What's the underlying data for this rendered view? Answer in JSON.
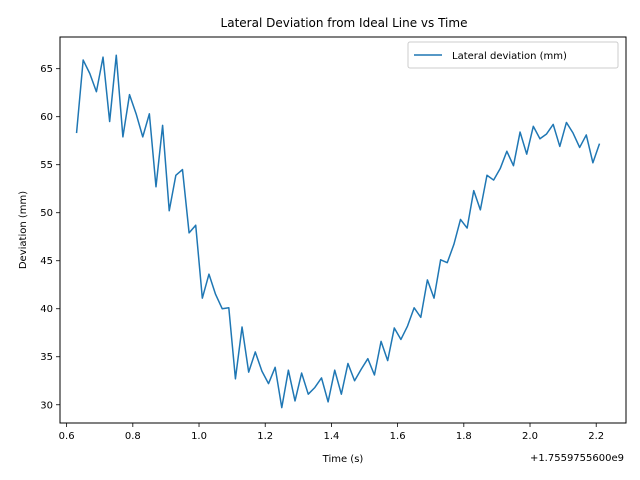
{
  "chart_data": {
    "type": "line",
    "title": "Lateral Deviation from Ideal Line vs Time",
    "xlabel": "Time (s)",
    "ylabel": "Deviation (mm)",
    "x_offset_label": "+1.7559755600e9",
    "xlim": [
      0.58,
      2.29
    ],
    "ylim": [
      28.1,
      68.3
    ],
    "x_ticks": [
      0.6,
      0.8,
      1.0,
      1.2,
      1.4,
      1.6,
      1.8,
      2.0,
      2.2
    ],
    "x_tick_labels": [
      "0.6",
      "0.8",
      "1.0",
      "1.2",
      "1.4",
      "1.6",
      "1.8",
      "2.0",
      "2.2"
    ],
    "y_ticks": [
      30,
      35,
      40,
      45,
      50,
      55,
      60,
      65
    ],
    "y_tick_labels": [
      "30",
      "35",
      "40",
      "45",
      "50",
      "55",
      "60",
      "65"
    ],
    "grid": false,
    "legend_position": "top-right",
    "series": [
      {
        "name": "Lateral deviation (mm)",
        "color": "#1f77b4",
        "x": [
          0.63,
          0.65,
          0.67,
          0.69,
          0.71,
          0.73,
          0.75,
          0.77,
          0.79,
          0.81,
          0.83,
          0.85,
          0.87,
          0.89,
          0.91,
          0.93,
          0.95,
          0.97,
          0.99,
          1.01,
          1.03,
          1.05,
          1.07,
          1.09,
          1.11,
          1.13,
          1.15,
          1.17,
          1.19,
          1.21,
          1.23,
          1.25,
          1.27,
          1.29,
          1.31,
          1.33,
          1.35,
          1.37,
          1.39,
          1.41,
          1.43,
          1.45,
          1.47,
          1.49,
          1.51,
          1.53,
          1.55,
          1.57,
          1.59,
          1.61,
          1.63,
          1.65,
          1.67,
          1.69,
          1.71,
          1.73,
          1.75,
          1.77,
          1.79,
          1.81,
          1.83,
          1.85,
          1.87,
          1.89,
          1.91,
          1.93,
          1.95,
          1.97,
          1.99,
          2.01,
          2.03,
          2.05,
          2.07,
          2.09,
          2.11,
          2.13,
          2.15,
          2.17,
          2.19,
          2.21
        ],
        "values": [
          58.3,
          65.9,
          64.5,
          62.6,
          66.2,
          59.5,
          66.4,
          57.9,
          62.3,
          60.3,
          57.9,
          60.3,
          52.7,
          59.1,
          50.2,
          53.9,
          54.5,
          47.9,
          48.7,
          41.1,
          43.6,
          41.5,
          40.0,
          40.1,
          32.7,
          38.1,
          33.4,
          35.5,
          33.5,
          32.2,
          33.9,
          29.7,
          33.6,
          30.4,
          33.3,
          31.1,
          31.8,
          32.8,
          30.3,
          33.6,
          31.1,
          34.3,
          32.5,
          33.7,
          34.8,
          33.1,
          36.6,
          34.6,
          38.0,
          36.8,
          38.2,
          40.1,
          39.1,
          43.0,
          41.1,
          45.1,
          44.8,
          46.7,
          49.3,
          48.4,
          52.3,
          50.3,
          53.9,
          53.4,
          54.6,
          56.4,
          54.9,
          58.4,
          56.1,
          59.0,
          57.7,
          58.2,
          59.2,
          56.9,
          59.4,
          58.3,
          56.8,
          58.1,
          55.2,
          57.2
        ]
      }
    ]
  }
}
